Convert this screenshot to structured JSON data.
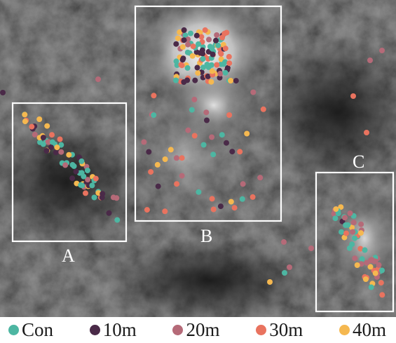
{
  "regions": [
    {
      "id": "A",
      "label": "A"
    },
    {
      "id": "B",
      "label": "B"
    },
    {
      "id": "C",
      "label": "C"
    }
  ],
  "legend": {
    "items": [
      {
        "key": "con",
        "label": "Con",
        "color": "#4db6a2"
      },
      {
        "key": "10m",
        "label": "10m",
        "color": "#4a2a48"
      },
      {
        "key": "20m",
        "label": "20m",
        "color": "#b56a78"
      },
      {
        "key": "30m",
        "label": "30m",
        "color": "#e9735f"
      },
      {
        "key": "40m",
        "label": "40m",
        "color": "#f5b850"
      }
    ]
  },
  "colors": {
    "box_outline": "#ffffff",
    "terrain_dark": "#1e1e1e",
    "terrain_light": "#f2f2f2"
  }
}
